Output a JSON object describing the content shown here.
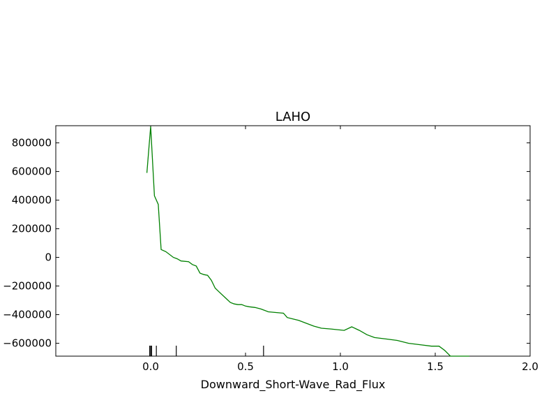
{
  "chart_data": {
    "type": "line",
    "title": "LAHO",
    "xlabel": "Downward_Short-Wave_Rad_Flux",
    "ylabel": "",
    "xlim": [
      -0.5,
      2.0
    ],
    "ylim": [
      -690000,
      920000
    ],
    "x_ticks": [
      0.0,
      0.5,
      1.0,
      1.5,
      2.0
    ],
    "x_tick_labels": [
      "0.0",
      "0.5",
      "1.0",
      "1.5",
      "2.0"
    ],
    "y_ticks": [
      800000,
      600000,
      400000,
      200000,
      0,
      -200000,
      -400000,
      -600000
    ],
    "y_tick_labels": [
      "800000",
      "600000",
      "400000",
      "200000",
      "0",
      "−200000",
      "−400000",
      "−600000"
    ],
    "grid": false,
    "line_color": "#008000",
    "rug_color": "#000000",
    "series": [
      {
        "x": [
          -0.02,
          0.0,
          0.02,
          0.04,
          0.055,
          0.08,
          0.12,
          0.14,
          0.16,
          0.2,
          0.22,
          0.24,
          0.26,
          0.28,
          0.3,
          0.32,
          0.34,
          0.36,
          0.4,
          0.42,
          0.44,
          0.46,
          0.48,
          0.5,
          0.52,
          0.55,
          0.58,
          0.6,
          0.62,
          0.66,
          0.7,
          0.72,
          0.75,
          0.78,
          0.82,
          0.86,
          0.9,
          0.95,
          1.02,
          1.06,
          1.1,
          1.14,
          1.18,
          1.24,
          1.3,
          1.36,
          1.42,
          1.48,
          1.52,
          1.55,
          1.58,
          1.6,
          1.64,
          1.68
        ],
        "y": [
          590000,
          915000,
          430000,
          370000,
          55000,
          40000,
          0,
          -10000,
          -25000,
          -30000,
          -50000,
          -60000,
          -110000,
          -120000,
          -125000,
          -160000,
          -215000,
          -240000,
          -290000,
          -315000,
          -325000,
          -330000,
          -330000,
          -340000,
          -345000,
          -350000,
          -360000,
          -370000,
          -380000,
          -385000,
          -390000,
          -420000,
          -430000,
          -440000,
          -460000,
          -480000,
          -495000,
          -500000,
          -510000,
          -485000,
          -510000,
          -540000,
          -560000,
          -570000,
          -580000,
          -600000,
          -610000,
          -620000,
          -620000,
          -650000,
          -690000,
          -690000,
          -690000,
          -690000
        ]
      }
    ],
    "rug": [
      -0.005,
      0.0,
      0.005,
      0.03,
      0.135,
      0.595
    ]
  }
}
